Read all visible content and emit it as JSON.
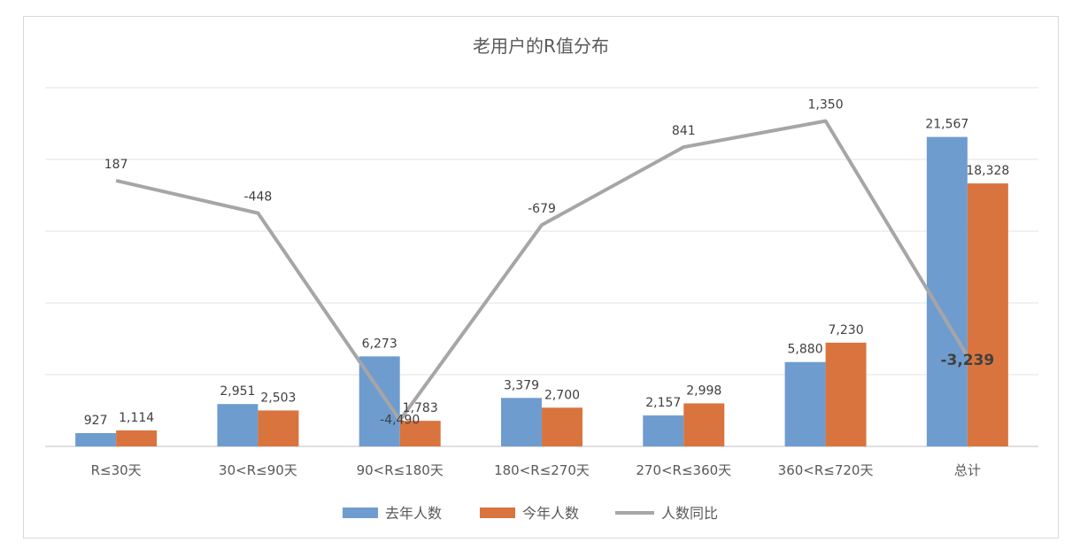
{
  "chart_data": {
    "type": "bar",
    "title": "老用户的R值分布",
    "categories": [
      "R≤30天",
      "30<R≤90天",
      "90<R≤180天",
      "180<R≤270天",
      "270<R≤360天",
      "360<R≤720天",
      "总计"
    ],
    "series": [
      {
        "name": "去年人数",
        "type": "bar",
        "color": "#6f9ccf",
        "values": [
          927,
          2951,
          6273,
          3379,
          2157,
          5880,
          21567
        ],
        "labels": [
          "927",
          "2,951",
          "6,273",
          "3,379",
          "2,157",
          "5,880",
          "21,567"
        ]
      },
      {
        "name": "今年人数",
        "type": "bar",
        "color": "#d9743e",
        "values": [
          1114,
          2503,
          1783,
          2700,
          2998,
          7230,
          18328
        ],
        "labels": [
          "1,114",
          "2,503",
          "1,783",
          "2,700",
          "2,998",
          "7,230",
          "18,328"
        ]
      },
      {
        "name": "人数同比",
        "type": "line",
        "color": "#a6a6a6",
        "values": [
          187,
          -448,
          -4490,
          -679,
          841,
          1350,
          -3239
        ],
        "labels": [
          "187",
          "-448",
          "-4,490",
          "-679",
          "841",
          "1,350",
          "-3,239"
        ]
      }
    ],
    "ylim": [
      0,
      25000
    ],
    "line_ylim": [
      -5000,
      2000
    ],
    "gridlines": true,
    "legend_position": "bottom"
  }
}
